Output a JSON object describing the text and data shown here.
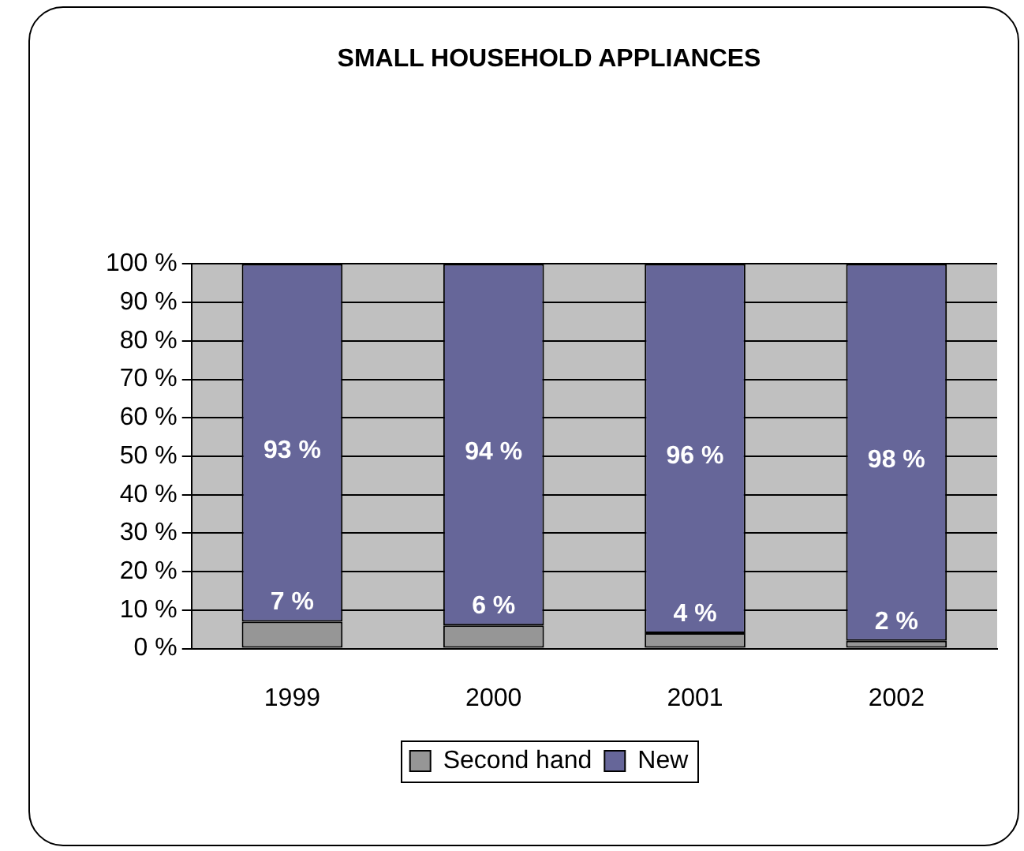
{
  "chart_data": {
    "type": "bar",
    "title": "SMALL HOUSEHOLD APPLIANCES",
    "categories": [
      "1999",
      "2000",
      "2001",
      "2002"
    ],
    "stacked": true,
    "series": [
      {
        "name": "Second hand",
        "color": "#969696",
        "values": [
          7,
          6,
          4,
          2
        ],
        "value_labels": [
          "7 %",
          "6 %",
          "4 %",
          "2 %"
        ]
      },
      {
        "name": "New",
        "color": "#666699",
        "values": [
          93,
          94,
          96,
          98
        ],
        "value_labels": [
          "93 %",
          "94 %",
          "96 %",
          "98 %"
        ]
      }
    ],
    "ylim": [
      0,
      100
    ],
    "yticks": [
      {
        "value": 0,
        "label": "0 %"
      },
      {
        "value": 10,
        "label": "10 %"
      },
      {
        "value": 20,
        "label": "20 %"
      },
      {
        "value": 30,
        "label": "30 %"
      },
      {
        "value": 40,
        "label": "40 %"
      },
      {
        "value": 50,
        "label": "50 %"
      },
      {
        "value": 60,
        "label": "60 %"
      },
      {
        "value": 70,
        "label": "70 %"
      },
      {
        "value": 80,
        "label": "80 %"
      },
      {
        "value": 90,
        "label": "90 %"
      },
      {
        "value": 100,
        "label": "100 %"
      }
    ],
    "grid": "y",
    "legend": "bottom"
  }
}
